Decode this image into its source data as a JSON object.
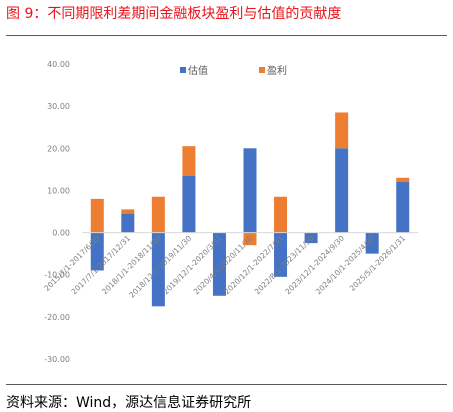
{
  "figure": {
    "title": "图 9：不同期限利差期间金融板块盈利与估值的贡献度",
    "source": "资料来源：Wind，源达信息证券研究所"
  },
  "colors": {
    "title": "#e8141b",
    "valuation": "#4472c4",
    "earnings": "#ed7d31",
    "axis_text": "#7f7f7f",
    "zero_line": "#d9d9d9"
  },
  "chart_data": {
    "type": "bar",
    "stacked": true,
    "title": "",
    "xlabel": "",
    "ylabel": "",
    "categories": [
      "2015/7/1-2017/6/30",
      "2017/7/1-2017/12/31",
      "2018/1/1-2018/11/30",
      "2018/12/1-2019/11/30",
      "2019/12/1-2020/3/31",
      "2020/4/1-2020/11/30",
      "2020/12/1-2022/7/31",
      "2022/8/1-2023/11/30",
      "2023/12/1-2024/9/30",
      "2024/10/1-2025/4/30",
      "2025/5/1-2026/1/31"
    ],
    "series": [
      {
        "name": "估值",
        "values": [
          -9,
          4.5,
          -17.5,
          13.5,
          -15,
          20,
          -10.5,
          -2.5,
          20,
          -5,
          12
        ]
      },
      {
        "name": "盈利",
        "values": [
          8,
          1,
          8.5,
          7,
          0,
          -3,
          8.5,
          0,
          8.5,
          0,
          1
        ]
      }
    ],
    "ylim": [
      -30,
      40
    ],
    "yticks": [
      40,
      30,
      20,
      10,
      0,
      -10,
      -20,
      -30
    ],
    "ytick_labels": [
      "40.00",
      "30.00",
      "20.00",
      "10.00",
      "0.00",
      "-10.00",
      "-20.00",
      "-30.00"
    ],
    "legend_position": "top-center",
    "grid": false
  }
}
